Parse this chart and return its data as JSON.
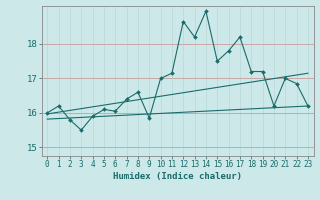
{
  "xlabel": "Humidex (Indice chaleur)",
  "bg_color": "#cce8e8",
  "line_color": "#1a6b6b",
  "grid_color_minor": "#b8d8d8",
  "grid_color_major": "#c8a8a8",
  "xlim": [
    -0.5,
    23.5
  ],
  "ylim": [
    14.75,
    19.1
  ],
  "yticks": [
    15,
    16,
    17,
    18
  ],
  "xticks": [
    0,
    1,
    2,
    3,
    4,
    5,
    6,
    7,
    8,
    9,
    10,
    11,
    12,
    13,
    14,
    15,
    16,
    17,
    18,
    19,
    20,
    21,
    22,
    23
  ],
  "line1_x": [
    0,
    1,
    2,
    3,
    4,
    5,
    6,
    7,
    8,
    9,
    10,
    11,
    12,
    13,
    14,
    15,
    16,
    17,
    18,
    19,
    20,
    21,
    22,
    23
  ],
  "line1_y": [
    16.0,
    16.2,
    15.8,
    15.5,
    15.9,
    16.1,
    16.05,
    16.4,
    16.6,
    15.85,
    17.0,
    17.15,
    18.65,
    18.2,
    18.95,
    17.5,
    17.8,
    18.2,
    17.2,
    17.2,
    16.2,
    17.0,
    16.85,
    16.2
  ],
  "line2_x": [
    0,
    23
  ],
  "line2_y": [
    15.82,
    16.2
  ],
  "line3_x": [
    0,
    23
  ],
  "line3_y": [
    15.97,
    17.15
  ]
}
